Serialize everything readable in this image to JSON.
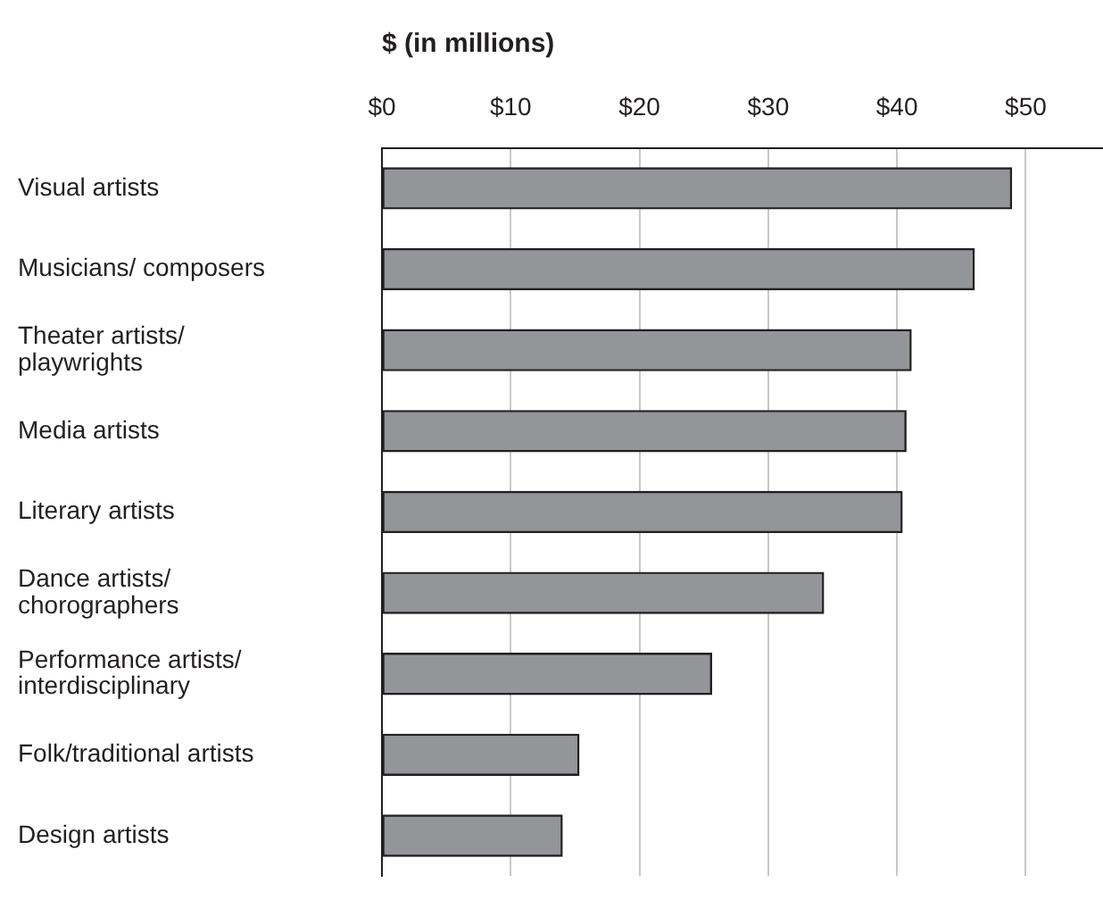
{
  "chart_data": {
    "type": "bar",
    "orientation": "horizontal",
    "xlabel": "$ (in millions)",
    "categories": [
      "Visual artists",
      "Musicians/ composers",
      "Theater artists/ playwrights",
      "Media artists",
      "Literary artists",
      "Dance artists/ chorographers",
      "Performance artists/ interdisciplinary",
      "Folk/traditional artists",
      "Design artists"
    ],
    "values": [
      48.9,
      46.0,
      41.1,
      40.7,
      40.4,
      34.3,
      25.6,
      15.3,
      14.0
    ],
    "color": "#939598",
    "xlim": [
      0,
      56
    ],
    "xticks": [
      {
        "value": 0,
        "label": "$0"
      },
      {
        "value": 10,
        "label": "$10"
      },
      {
        "value": 20,
        "label": "$20"
      },
      {
        "value": 30,
        "label": "$30"
      },
      {
        "value": 40,
        "label": "$40"
      },
      {
        "value": 50,
        "label": "$50"
      }
    ],
    "grid": "x"
  }
}
